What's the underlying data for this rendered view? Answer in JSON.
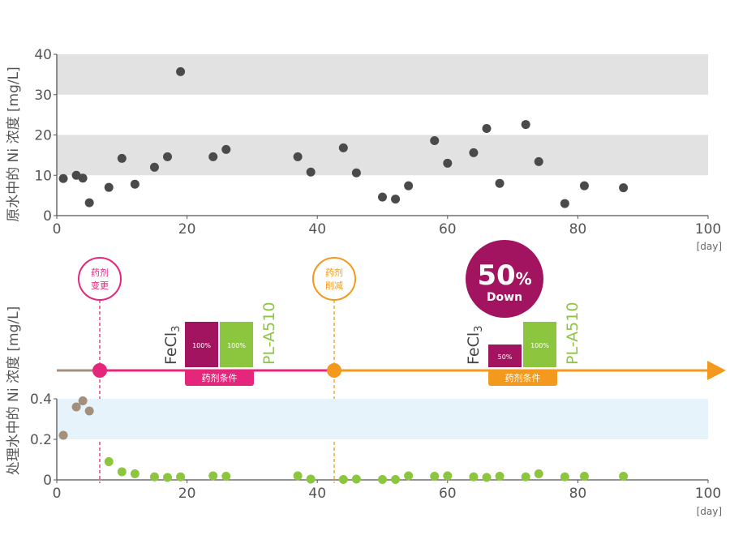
{
  "colors": {
    "raw_point": "#4a4a4a",
    "band_gray": "#e2e2e2",
    "band_blue": "#e6f3fb",
    "before_point": "#a48f7c",
    "treated_point": "#8cc63f",
    "magenta": "#e4277b",
    "orange": "#f39a1e",
    "fecl3_bar": "#a2145f",
    "pla510_bar": "#8cc63f",
    "pre_line": "#a48f7c"
  },
  "chart_data": [
    {
      "type": "scatter",
      "ylabel": "原水中的 Ni 浓度 [mg/L]",
      "xunit": "[day]",
      "xlim": [
        0,
        100
      ],
      "ylim": [
        0,
        40
      ],
      "xticks": [
        "0",
        "20",
        "40",
        "60",
        "80",
        "100"
      ],
      "yticks": [
        "0",
        "10",
        "20",
        "30",
        "40"
      ],
      "bands": [
        [
          10,
          20
        ],
        [
          30,
          40
        ]
      ],
      "series": [
        {
          "points": [
            [
              1,
              9.2
            ],
            [
              3,
              10
            ],
            [
              4,
              9.3
            ],
            [
              5,
              3.2
            ],
            [
              8,
              7
            ],
            [
              10,
              14.2
            ],
            [
              12,
              7.8
            ],
            [
              15,
              12
            ],
            [
              17,
              14.6
            ],
            [
              19,
              35.7
            ],
            [
              24,
              14.6
            ],
            [
              26,
              16.4
            ],
            [
              37,
              14.6
            ],
            [
              39,
              10.8
            ],
            [
              44,
              16.8
            ],
            [
              46,
              10.6
            ],
            [
              50,
              4.6
            ],
            [
              52,
              4.1
            ],
            [
              54,
              7.4
            ],
            [
              58,
              18.6
            ],
            [
              60,
              13
            ],
            [
              64,
              15.6
            ],
            [
              66,
              21.6
            ],
            [
              68,
              8
            ],
            [
              72,
              22.6
            ],
            [
              74,
              13.4
            ],
            [
              78,
              3
            ],
            [
              81,
              7.4
            ],
            [
              87,
              6.9
            ]
          ]
        }
      ]
    },
    {
      "type": "scatter",
      "ylabel": "处理水中的 Ni 浓度 [mg/L]",
      "xunit": "[day]",
      "xlim": [
        0,
        100
      ],
      "ylim": [
        0,
        0.4
      ],
      "xticks": [
        "0",
        "20",
        "40",
        "60",
        "80",
        "100"
      ],
      "yticks": [
        "0",
        "0.2",
        "0.4"
      ],
      "bands": [
        [
          0.2,
          0.4
        ]
      ],
      "series": [
        {
          "role": "before",
          "points": [
            [
              1,
              0.22
            ],
            [
              3,
              0.36
            ],
            [
              4,
              0.39
            ],
            [
              5,
              0.34
            ]
          ]
        },
        {
          "role": "after",
          "points": [
            [
              8,
              0.09
            ],
            [
              10,
              0.04
            ],
            [
              12,
              0.03
            ],
            [
              15,
              0.015
            ],
            [
              17,
              0.012
            ],
            [
              19,
              0.015
            ],
            [
              24,
              0.02
            ],
            [
              26,
              0.018
            ],
            [
              37,
              0.02
            ],
            [
              39,
              0.004
            ],
            [
              44,
              0.002
            ],
            [
              46,
              0.004
            ],
            [
              50,
              0.002
            ],
            [
              52,
              0.002
            ],
            [
              54,
              0.02
            ],
            [
              58,
              0.018
            ],
            [
              60,
              0.02
            ],
            [
              64,
              0.015
            ],
            [
              66,
              0.012
            ],
            [
              68,
              0.018
            ],
            [
              72,
              0.015
            ],
            [
              74,
              0.03
            ],
            [
              78,
              0.015
            ],
            [
              81,
              0.018
            ],
            [
              87,
              0.018
            ]
          ]
        }
      ]
    }
  ],
  "timeline": {
    "events": [
      {
        "day": 6.5,
        "label_lines": [
          "药剂",
          "变更"
        ],
        "color": "magenta"
      },
      {
        "day": 42.5,
        "label_lines": [
          "药剂",
          "削减"
        ],
        "color": "orange"
      }
    ],
    "conditions": [
      {
        "fecl3_label": "FeCl",
        "fecl3_sub": "3",
        "fecl3_pct": "100%",
        "fecl3_level": 1.0,
        "pla510_label": "PL-A510",
        "pla510_pct": "100%",
        "pla510_level": 1.0,
        "badge": "药剂条件"
      },
      {
        "fecl3_label": "FeCl",
        "fecl3_sub": "3",
        "fecl3_pct": "50%",
        "fecl3_level": 0.5,
        "pla510_label": "PL-A510",
        "pla510_pct": "100%",
        "pla510_level": 1.0,
        "badge": "药剂条件"
      }
    ],
    "callout": {
      "value": "50",
      "unit": "%",
      "text": "Down"
    }
  }
}
